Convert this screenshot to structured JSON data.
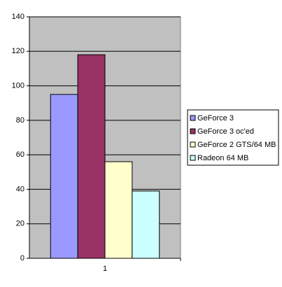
{
  "chart_data": {
    "type": "bar",
    "categories": [
      "1"
    ],
    "series": [
      {
        "name": "GeForce 3",
        "color": "#9999ff",
        "values": [
          95
        ]
      },
      {
        "name": "GeForce 3 oc'ed",
        "color": "#993366",
        "values": [
          118
        ]
      },
      {
        "name": "GeForce 2 GTS/64 MB",
        "color": "#ffffcc",
        "values": [
          56
        ]
      },
      {
        "name": "Radeon 64 MB",
        "color": "#ccffff",
        "values": [
          39
        ]
      }
    ],
    "ylim": [
      0,
      140
    ],
    "yticks": [
      0,
      20,
      40,
      60,
      80,
      100,
      120,
      140
    ],
    "grid": true,
    "legend": "right",
    "background": "#c0c0c0"
  }
}
